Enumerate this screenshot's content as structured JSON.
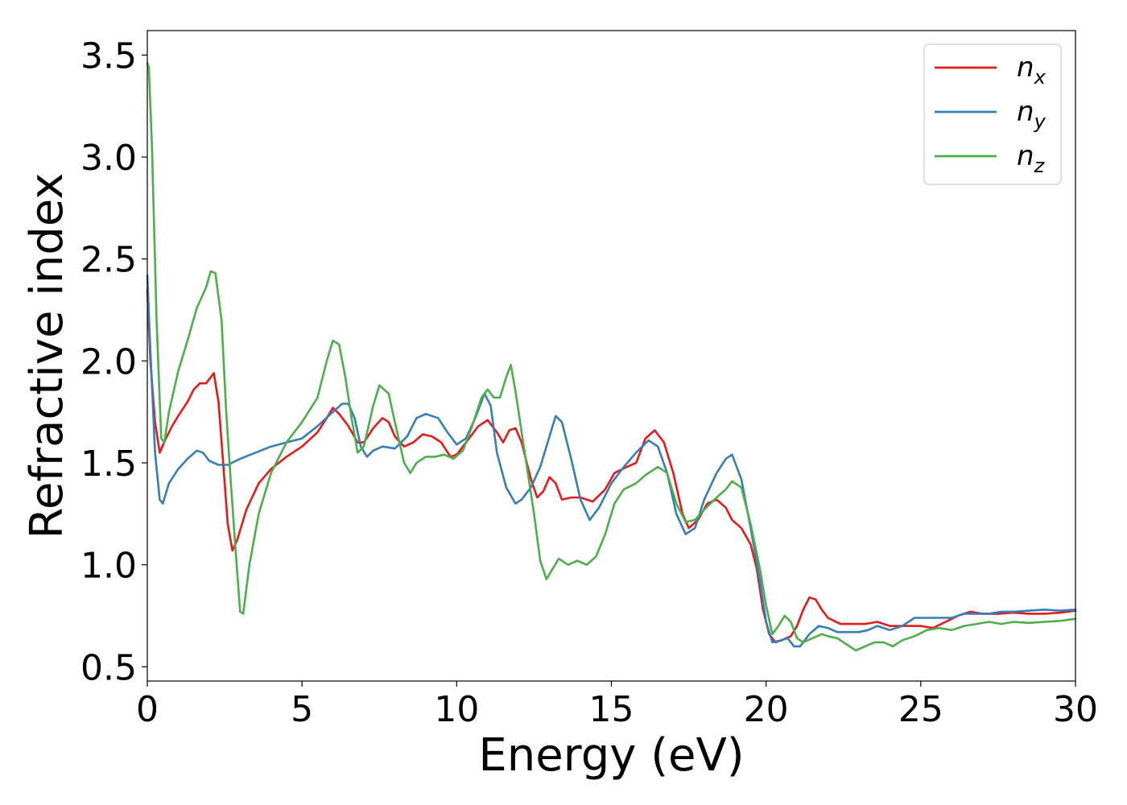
{
  "chart_data": {
    "type": "line",
    "title": "",
    "xlabel": "Energy (eV)",
    "ylabel": "Refractive index",
    "xlim": [
      0,
      30
    ],
    "ylim": [
      0.43,
      3.62
    ],
    "xticks": [
      0,
      5,
      10,
      15,
      20,
      25,
      30
    ],
    "xtick_labels": [
      "0",
      "5",
      "10",
      "15",
      "20",
      "25",
      "30"
    ],
    "yticks": [
      0.5,
      1.0,
      1.5,
      2.0,
      2.5,
      3.0,
      3.5
    ],
    "ytick_labels": [
      "0.5",
      "1.0",
      "1.5",
      "2.0",
      "2.5",
      "3.0",
      "3.5"
    ],
    "grid": false,
    "legend_position": "top-right",
    "series": [
      {
        "name": "n_x",
        "legend": {
          "base": "n",
          "sub": "x"
        },
        "color": "#e41a1c",
        "points": [
          [
            0.0,
            2.35
          ],
          [
            0.1,
            2.0
          ],
          [
            0.25,
            1.7
          ],
          [
            0.4,
            1.55
          ],
          [
            0.6,
            1.62
          ],
          [
            0.8,
            1.68
          ],
          [
            1.0,
            1.73
          ],
          [
            1.3,
            1.8
          ],
          [
            1.5,
            1.86
          ],
          [
            1.7,
            1.89
          ],
          [
            1.9,
            1.89
          ],
          [
            2.05,
            1.92
          ],
          [
            2.15,
            1.94
          ],
          [
            2.3,
            1.8
          ],
          [
            2.45,
            1.5
          ],
          [
            2.6,
            1.2
          ],
          [
            2.75,
            1.07
          ],
          [
            2.9,
            1.12
          ],
          [
            3.2,
            1.27
          ],
          [
            3.6,
            1.4
          ],
          [
            4.0,
            1.47
          ],
          [
            4.5,
            1.53
          ],
          [
            5.0,
            1.58
          ],
          [
            5.5,
            1.65
          ],
          [
            5.8,
            1.72
          ],
          [
            6.0,
            1.77
          ],
          [
            6.2,
            1.74
          ],
          [
            6.5,
            1.68
          ],
          [
            6.8,
            1.6
          ],
          [
            7.0,
            1.6
          ],
          [
            7.3,
            1.67
          ],
          [
            7.6,
            1.72
          ],
          [
            7.8,
            1.7
          ],
          [
            8.0,
            1.63
          ],
          [
            8.3,
            1.58
          ],
          [
            8.6,
            1.6
          ],
          [
            8.9,
            1.64
          ],
          [
            9.2,
            1.63
          ],
          [
            9.5,
            1.6
          ],
          [
            9.8,
            1.53
          ],
          [
            10.0,
            1.54
          ],
          [
            10.3,
            1.6
          ],
          [
            10.7,
            1.68
          ],
          [
            11.0,
            1.71
          ],
          [
            11.3,
            1.65
          ],
          [
            11.5,
            1.6
          ],
          [
            11.7,
            1.66
          ],
          [
            11.9,
            1.67
          ],
          [
            12.1,
            1.6
          ],
          [
            12.4,
            1.42
          ],
          [
            12.6,
            1.33
          ],
          [
            12.8,
            1.36
          ],
          [
            13.0,
            1.43
          ],
          [
            13.2,
            1.4
          ],
          [
            13.4,
            1.32
          ],
          [
            13.7,
            1.33
          ],
          [
            14.0,
            1.33
          ],
          [
            14.4,
            1.31
          ],
          [
            14.8,
            1.37
          ],
          [
            15.1,
            1.45
          ],
          [
            15.5,
            1.48
          ],
          [
            15.8,
            1.5
          ],
          [
            16.1,
            1.62
          ],
          [
            16.4,
            1.66
          ],
          [
            16.7,
            1.6
          ],
          [
            17.0,
            1.45
          ],
          [
            17.3,
            1.25
          ],
          [
            17.5,
            1.18
          ],
          [
            17.8,
            1.22
          ],
          [
            18.1,
            1.3
          ],
          [
            18.4,
            1.32
          ],
          [
            18.7,
            1.28
          ],
          [
            18.9,
            1.22
          ],
          [
            19.2,
            1.18
          ],
          [
            19.5,
            1.1
          ],
          [
            19.7,
            0.98
          ],
          [
            19.9,
            0.78
          ],
          [
            20.1,
            0.66
          ],
          [
            20.3,
            0.62
          ],
          [
            20.5,
            0.63
          ],
          [
            20.8,
            0.65
          ],
          [
            21.0,
            0.7
          ],
          [
            21.2,
            0.78
          ],
          [
            21.4,
            0.84
          ],
          [
            21.6,
            0.83
          ],
          [
            21.8,
            0.78
          ],
          [
            22.0,
            0.74
          ],
          [
            22.4,
            0.71
          ],
          [
            22.8,
            0.71
          ],
          [
            23.2,
            0.71
          ],
          [
            23.6,
            0.72
          ],
          [
            24.0,
            0.7
          ],
          [
            24.5,
            0.7
          ],
          [
            25.0,
            0.7
          ],
          [
            25.4,
            0.69
          ],
          [
            25.8,
            0.72
          ],
          [
            26.2,
            0.75
          ],
          [
            26.6,
            0.77
          ],
          [
            27.0,
            0.76
          ],
          [
            27.5,
            0.76
          ],
          [
            28.0,
            0.765
          ],
          [
            28.5,
            0.76
          ],
          [
            29.0,
            0.76
          ],
          [
            29.5,
            0.765
          ],
          [
            30.0,
            0.775
          ]
        ]
      },
      {
        "name": "n_y",
        "legend": {
          "base": "n",
          "sub": "y"
        },
        "color": "#377eb8",
        "points": [
          [
            0.0,
            2.42
          ],
          [
            0.1,
            2.05
          ],
          [
            0.25,
            1.55
          ],
          [
            0.4,
            1.32
          ],
          [
            0.5,
            1.3
          ],
          [
            0.7,
            1.4
          ],
          [
            1.0,
            1.47
          ],
          [
            1.3,
            1.52
          ],
          [
            1.6,
            1.56
          ],
          [
            1.8,
            1.55
          ],
          [
            2.0,
            1.51
          ],
          [
            2.3,
            1.49
          ],
          [
            2.6,
            1.49
          ],
          [
            3.0,
            1.52
          ],
          [
            3.5,
            1.55
          ],
          [
            4.0,
            1.58
          ],
          [
            4.5,
            1.6
          ],
          [
            5.0,
            1.62
          ],
          [
            5.5,
            1.68
          ],
          [
            6.0,
            1.75
          ],
          [
            6.3,
            1.79
          ],
          [
            6.5,
            1.79
          ],
          [
            6.7,
            1.72
          ],
          [
            6.9,
            1.58
          ],
          [
            7.1,
            1.53
          ],
          [
            7.3,
            1.56
          ],
          [
            7.6,
            1.58
          ],
          [
            8.0,
            1.57
          ],
          [
            8.4,
            1.63
          ],
          [
            8.7,
            1.72
          ],
          [
            9.0,
            1.74
          ],
          [
            9.4,
            1.72
          ],
          [
            9.7,
            1.65
          ],
          [
            10.0,
            1.59
          ],
          [
            10.3,
            1.62
          ],
          [
            10.6,
            1.72
          ],
          [
            10.9,
            1.84
          ],
          [
            11.1,
            1.78
          ],
          [
            11.3,
            1.55
          ],
          [
            11.6,
            1.38
          ],
          [
            11.9,
            1.3
          ],
          [
            12.1,
            1.32
          ],
          [
            12.4,
            1.38
          ],
          [
            12.7,
            1.48
          ],
          [
            13.0,
            1.63
          ],
          [
            13.2,
            1.73
          ],
          [
            13.4,
            1.7
          ],
          [
            13.7,
            1.52
          ],
          [
            14.0,
            1.32
          ],
          [
            14.3,
            1.22
          ],
          [
            14.6,
            1.28
          ],
          [
            15.0,
            1.4
          ],
          [
            15.4,
            1.48
          ],
          [
            15.8,
            1.55
          ],
          [
            16.2,
            1.61
          ],
          [
            16.5,
            1.58
          ],
          [
            16.8,
            1.45
          ],
          [
            17.1,
            1.25
          ],
          [
            17.4,
            1.15
          ],
          [
            17.7,
            1.18
          ],
          [
            18.0,
            1.32
          ],
          [
            18.4,
            1.45
          ],
          [
            18.7,
            1.52
          ],
          [
            18.9,
            1.54
          ],
          [
            19.2,
            1.42
          ],
          [
            19.5,
            1.18
          ],
          [
            19.8,
            0.92
          ],
          [
            20.0,
            0.72
          ],
          [
            20.2,
            0.62
          ],
          [
            20.5,
            0.63
          ],
          [
            20.7,
            0.64
          ],
          [
            20.9,
            0.6
          ],
          [
            21.1,
            0.6
          ],
          [
            21.4,
            0.66
          ],
          [
            21.7,
            0.7
          ],
          [
            22.0,
            0.69
          ],
          [
            22.3,
            0.67
          ],
          [
            22.7,
            0.67
          ],
          [
            23.0,
            0.67
          ],
          [
            23.3,
            0.68
          ],
          [
            23.6,
            0.7
          ],
          [
            24.0,
            0.68
          ],
          [
            24.4,
            0.7
          ],
          [
            24.8,
            0.74
          ],
          [
            25.2,
            0.74
          ],
          [
            25.6,
            0.74
          ],
          [
            26.0,
            0.74
          ],
          [
            26.4,
            0.76
          ],
          [
            26.8,
            0.76
          ],
          [
            27.2,
            0.76
          ],
          [
            27.6,
            0.77
          ],
          [
            28.0,
            0.77
          ],
          [
            28.5,
            0.775
          ],
          [
            29.0,
            0.78
          ],
          [
            29.5,
            0.775
          ],
          [
            30.0,
            0.78
          ]
        ]
      },
      {
        "name": "n_z",
        "legend": {
          "base": "n",
          "sub": "z"
        },
        "color": "#4daf4a",
        "points": [
          [
            0.0,
            3.46
          ],
          [
            0.05,
            3.44
          ],
          [
            0.15,
            3.05
          ],
          [
            0.3,
            2.2
          ],
          [
            0.45,
            1.62
          ],
          [
            0.55,
            1.6
          ],
          [
            0.7,
            1.75
          ],
          [
            1.0,
            1.95
          ],
          [
            1.3,
            2.1
          ],
          [
            1.6,
            2.26
          ],
          [
            1.9,
            2.36
          ],
          [
            2.05,
            2.44
          ],
          [
            2.2,
            2.43
          ],
          [
            2.4,
            2.2
          ],
          [
            2.55,
            1.75
          ],
          [
            2.7,
            1.4
          ],
          [
            2.85,
            1.08
          ],
          [
            3.0,
            0.77
          ],
          [
            3.1,
            0.76
          ],
          [
            3.3,
            1.0
          ],
          [
            3.6,
            1.25
          ],
          [
            4.0,
            1.45
          ],
          [
            4.5,
            1.6
          ],
          [
            5.0,
            1.7
          ],
          [
            5.5,
            1.82
          ],
          [
            5.8,
            2.0
          ],
          [
            6.0,
            2.1
          ],
          [
            6.2,
            2.08
          ],
          [
            6.4,
            1.92
          ],
          [
            6.6,
            1.72
          ],
          [
            6.8,
            1.55
          ],
          [
            7.0,
            1.58
          ],
          [
            7.3,
            1.78
          ],
          [
            7.5,
            1.88
          ],
          [
            7.8,
            1.84
          ],
          [
            8.0,
            1.7
          ],
          [
            8.3,
            1.5
          ],
          [
            8.5,
            1.45
          ],
          [
            8.7,
            1.5
          ],
          [
            9.0,
            1.53
          ],
          [
            9.3,
            1.53
          ],
          [
            9.6,
            1.54
          ],
          [
            9.9,
            1.52
          ],
          [
            10.2,
            1.56
          ],
          [
            10.5,
            1.68
          ],
          [
            10.8,
            1.82
          ],
          [
            11.0,
            1.86
          ],
          [
            11.2,
            1.82
          ],
          [
            11.4,
            1.82
          ],
          [
            11.6,
            1.92
          ],
          [
            11.75,
            1.98
          ],
          [
            11.9,
            1.85
          ],
          [
            12.1,
            1.65
          ],
          [
            12.3,
            1.45
          ],
          [
            12.5,
            1.25
          ],
          [
            12.7,
            1.02
          ],
          [
            12.9,
            0.93
          ],
          [
            13.1,
            0.98
          ],
          [
            13.3,
            1.03
          ],
          [
            13.6,
            1.0
          ],
          [
            13.9,
            1.02
          ],
          [
            14.2,
            1.0
          ],
          [
            14.5,
            1.04
          ],
          [
            14.8,
            1.15
          ],
          [
            15.1,
            1.3
          ],
          [
            15.4,
            1.37
          ],
          [
            15.8,
            1.4
          ],
          [
            16.1,
            1.44
          ],
          [
            16.5,
            1.48
          ],
          [
            16.8,
            1.45
          ],
          [
            17.1,
            1.3
          ],
          [
            17.4,
            1.21
          ],
          [
            17.7,
            1.22
          ],
          [
            18.0,
            1.27
          ],
          [
            18.4,
            1.33
          ],
          [
            18.7,
            1.37
          ],
          [
            18.9,
            1.41
          ],
          [
            19.2,
            1.38
          ],
          [
            19.5,
            1.2
          ],
          [
            19.8,
            0.98
          ],
          [
            20.0,
            0.8
          ],
          [
            20.2,
            0.66
          ],
          [
            20.4,
            0.7
          ],
          [
            20.6,
            0.75
          ],
          [
            20.8,
            0.72
          ],
          [
            21.0,
            0.64
          ],
          [
            21.2,
            0.62
          ],
          [
            21.5,
            0.64
          ],
          [
            21.8,
            0.66
          ],
          [
            22.0,
            0.65
          ],
          [
            22.3,
            0.64
          ],
          [
            22.6,
            0.61
          ],
          [
            22.9,
            0.58
          ],
          [
            23.2,
            0.6
          ],
          [
            23.5,
            0.62
          ],
          [
            23.8,
            0.62
          ],
          [
            24.1,
            0.6
          ],
          [
            24.4,
            0.63
          ],
          [
            24.8,
            0.65
          ],
          [
            25.2,
            0.68
          ],
          [
            25.6,
            0.69
          ],
          [
            26.0,
            0.68
          ],
          [
            26.4,
            0.7
          ],
          [
            26.8,
            0.71
          ],
          [
            27.2,
            0.72
          ],
          [
            27.6,
            0.71
          ],
          [
            28.0,
            0.72
          ],
          [
            28.5,
            0.715
          ],
          [
            29.0,
            0.72
          ],
          [
            29.5,
            0.725
          ],
          [
            30.0,
            0.735
          ]
        ]
      }
    ]
  }
}
